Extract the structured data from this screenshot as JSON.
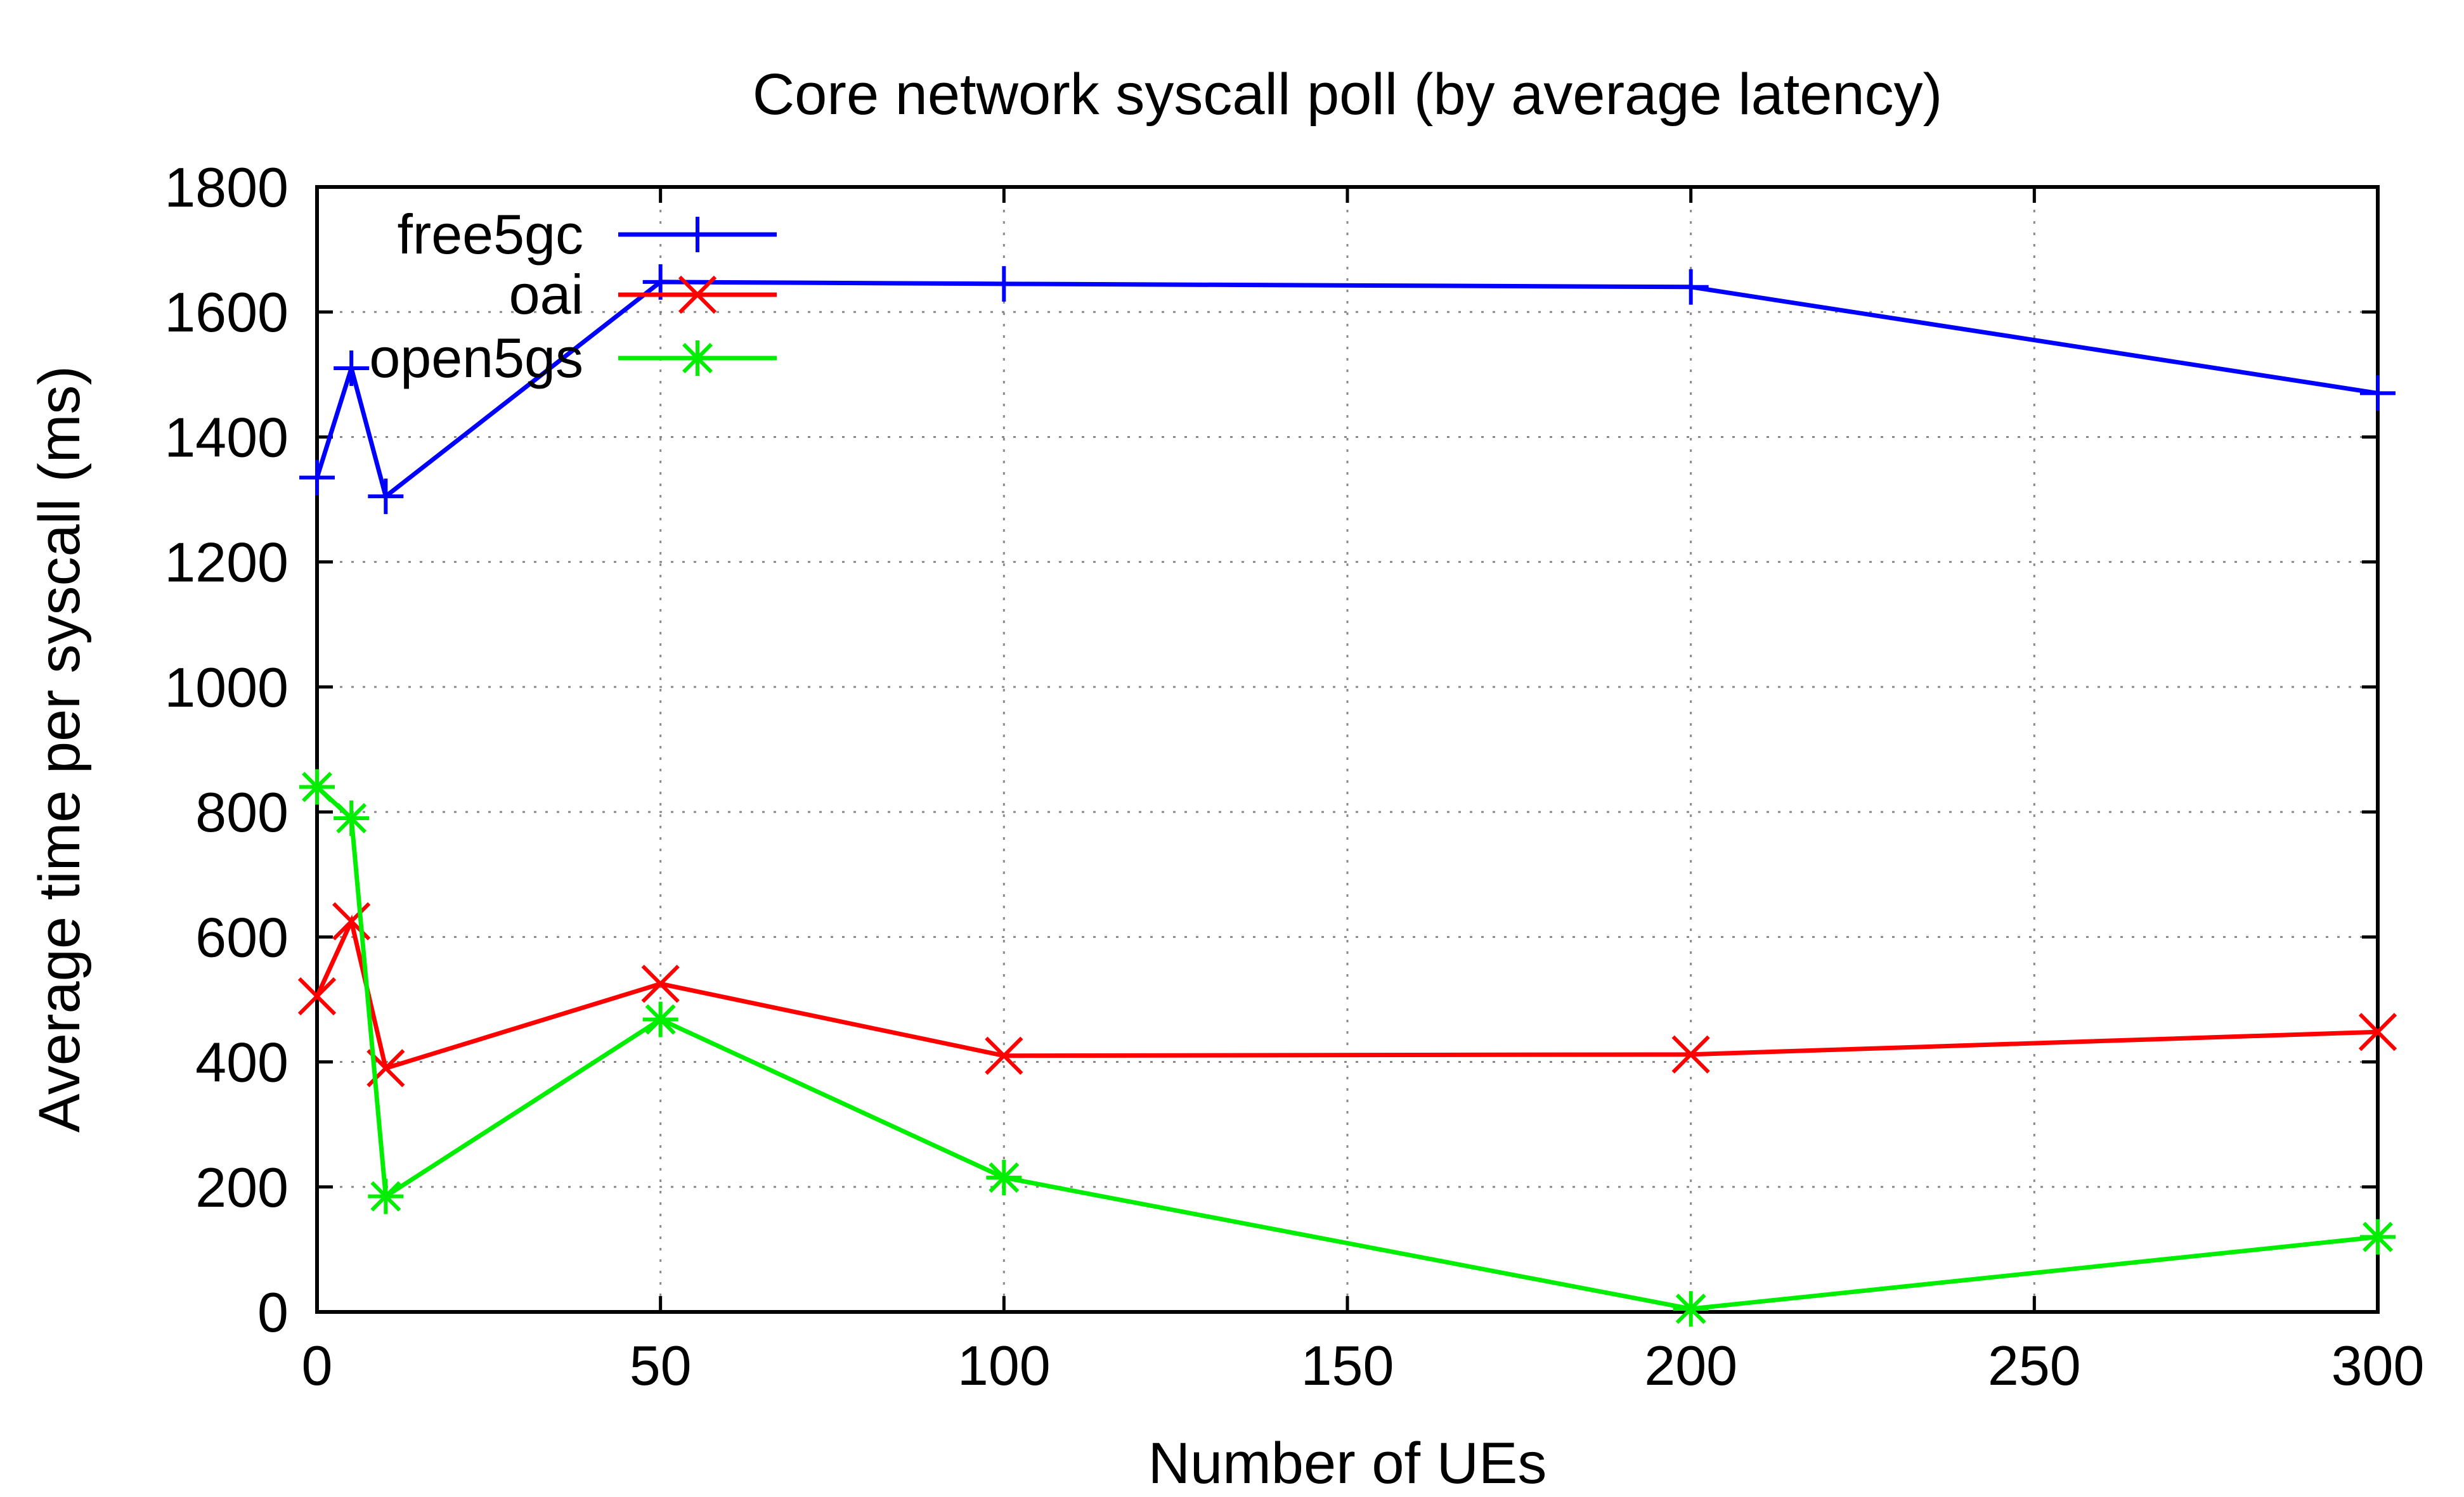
{
  "chart_data": {
    "type": "line",
    "title": "Core network syscall poll (by average latency)",
    "xlabel": "Number of UEs",
    "ylabel": "Average time per syscall (ms)",
    "xlim": [
      0,
      300
    ],
    "ylim": [
      0,
      1800
    ],
    "xticks": [
      0,
      50,
      100,
      150,
      200,
      250,
      300
    ],
    "yticks": [
      0,
      200,
      400,
      600,
      800,
      1000,
      1200,
      1400,
      1600,
      1800
    ],
    "grid": true,
    "legend_position": "top-left",
    "series": [
      {
        "name": "free5gc",
        "color": "#0000ff",
        "marker": "plus",
        "x": [
          0,
          5,
          10,
          50,
          100,
          200,
          300
        ],
        "y": [
          1335,
          1510,
          1305,
          1648,
          1645,
          1640,
          1470
        ]
      },
      {
        "name": "oai",
        "color": "#ff0000",
        "marker": "cross",
        "x": [
          0,
          5,
          10,
          50,
          100,
          200,
          300
        ],
        "y": [
          505,
          625,
          390,
          525,
          410,
          412,
          448
        ]
      },
      {
        "name": "open5gs",
        "color": "#00ee00",
        "marker": "star",
        "x": [
          0,
          5,
          10,
          50,
          100,
          200,
          300
        ],
        "y": [
          840,
          790,
          185,
          468,
          215,
          5,
          120
        ]
      }
    ]
  }
}
